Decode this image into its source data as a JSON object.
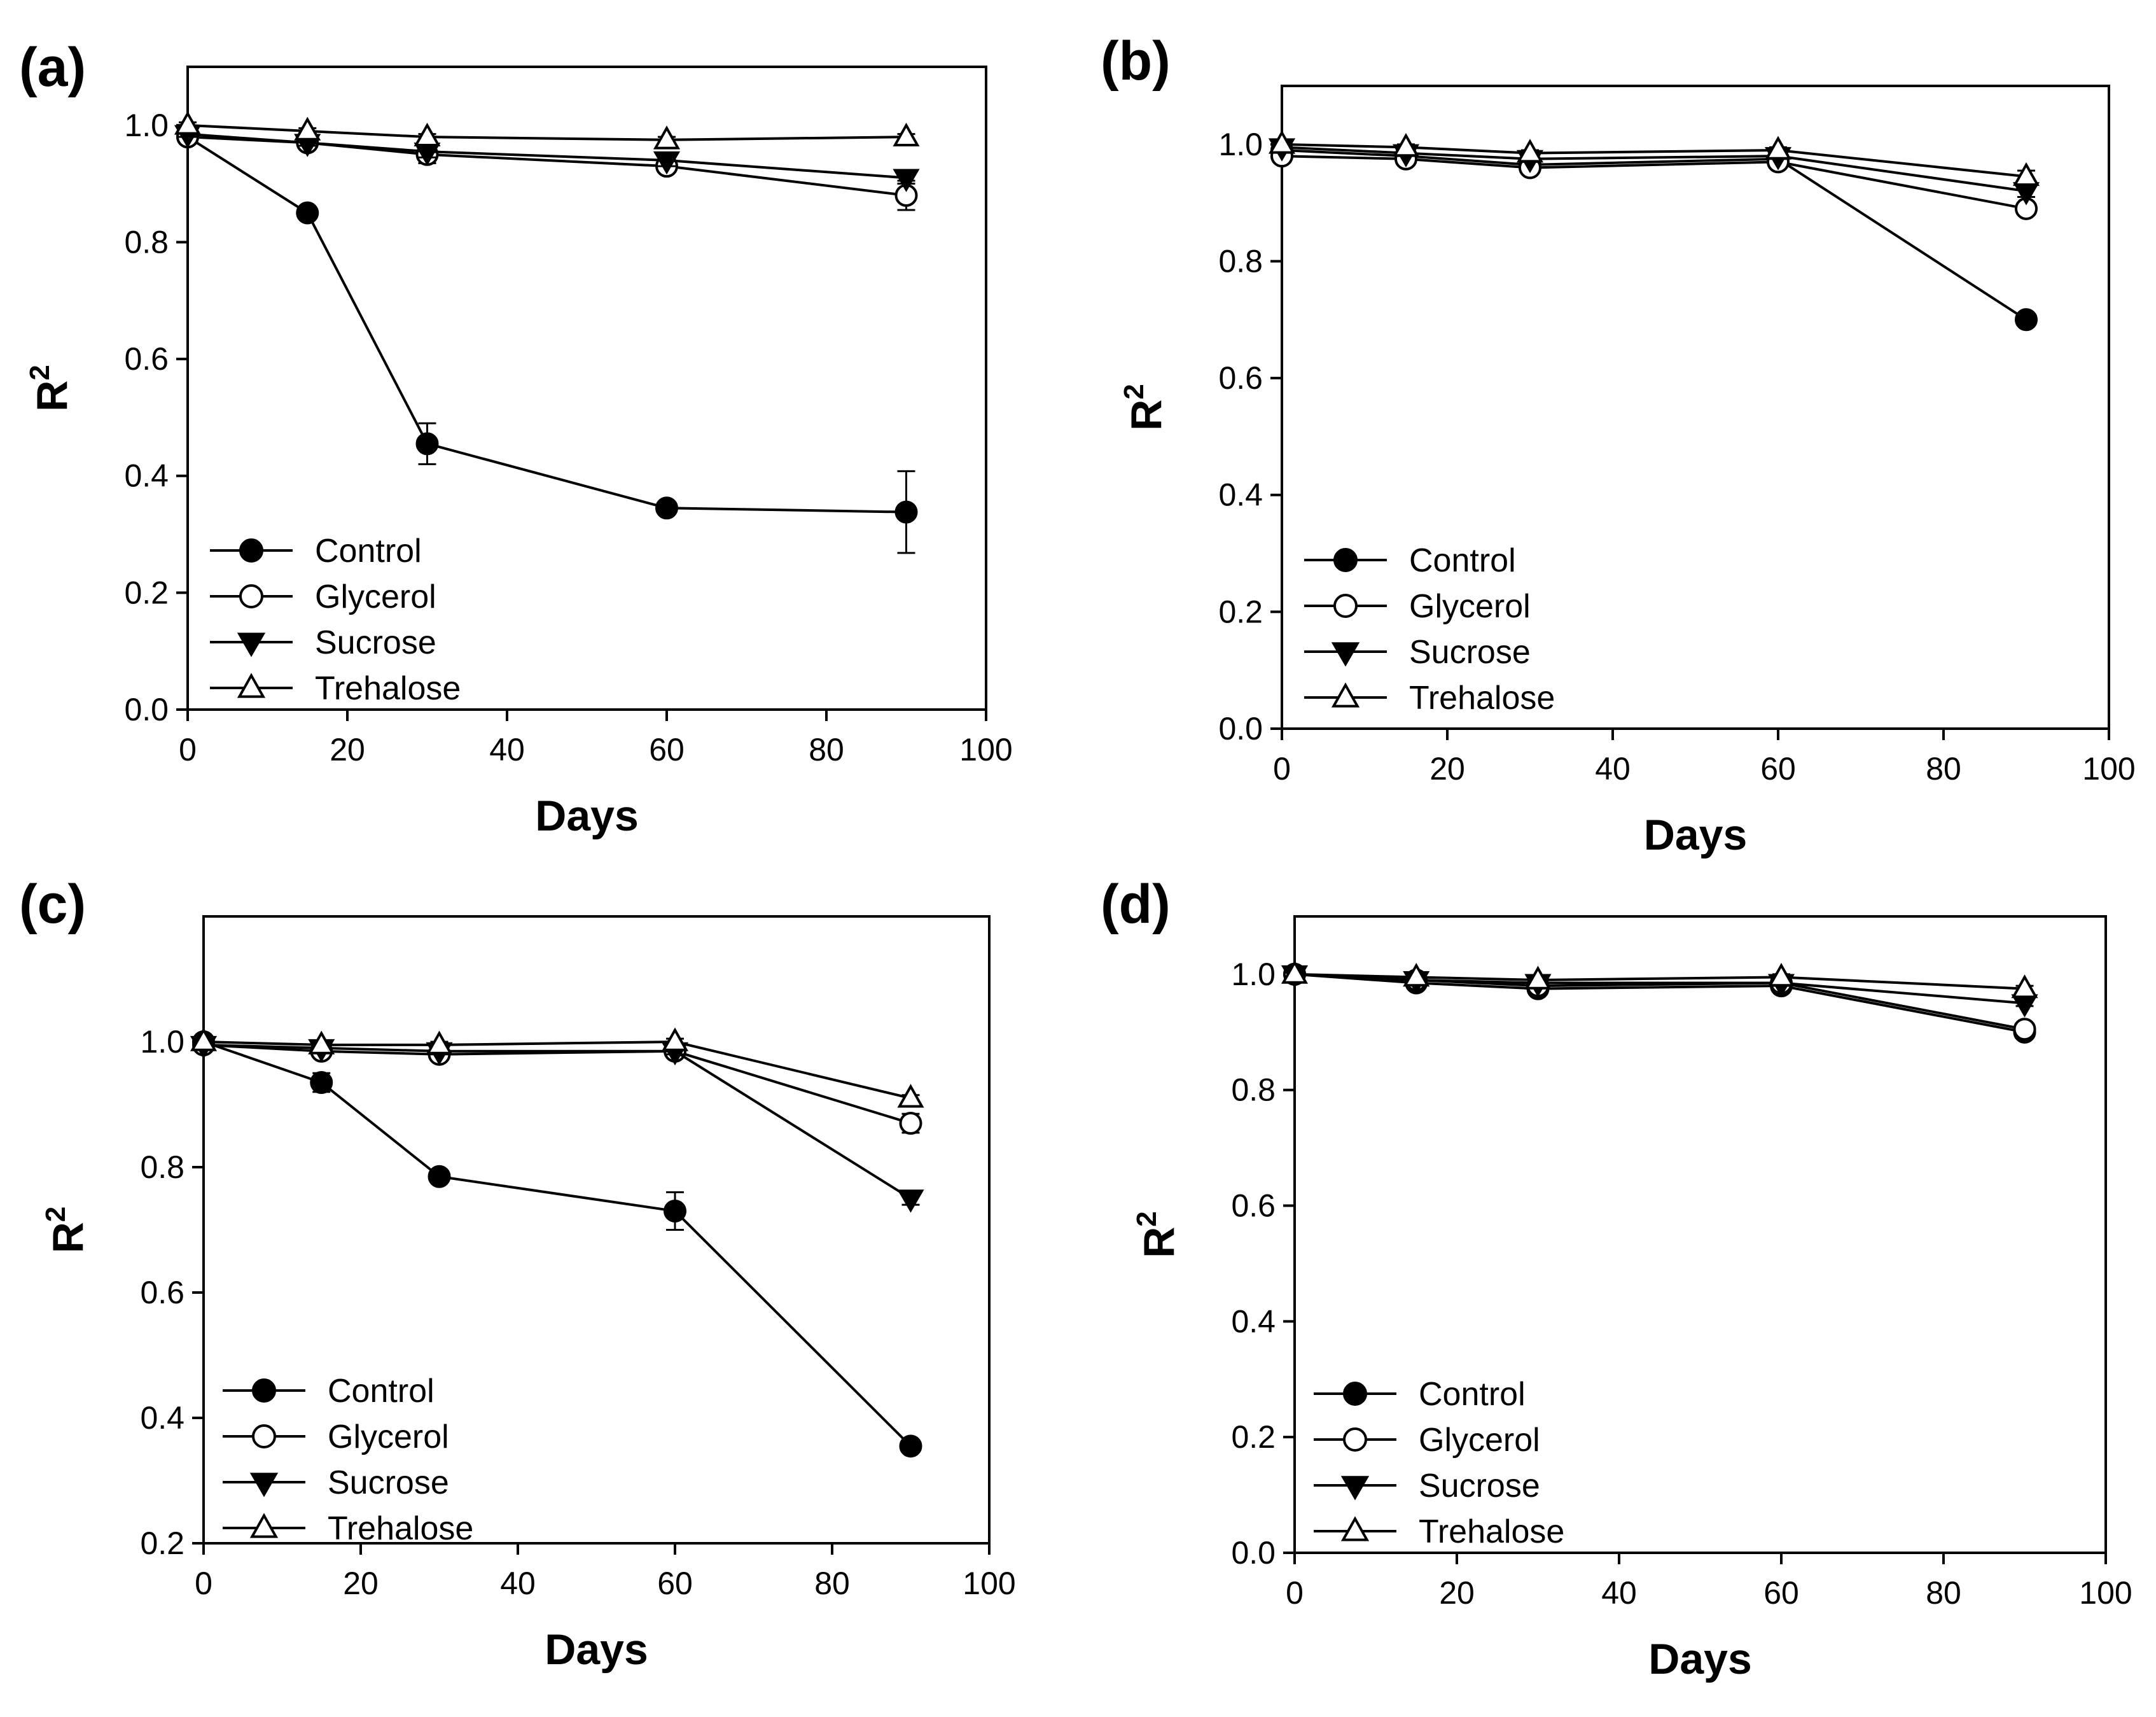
{
  "figure": {
    "panels": [
      "(a)",
      "(b)",
      "(c)",
      "(d)"
    ]
  },
  "chart_data": [
    {
      "panel": "(a)",
      "type": "line",
      "xlabel": "Days",
      "ylabel": "R",
      "ylabel_sup": "2",
      "xlim": [
        0,
        100
      ],
      "ylim": [
        0.0,
        1.1
      ],
      "xticks": [
        "0",
        "20",
        "40",
        "60",
        "80",
        "100"
      ],
      "yticks": [
        "0.0",
        "0.2",
        "0.4",
        "0.6",
        "0.8",
        "1.0"
      ],
      "x": [
        0,
        15,
        30,
        60,
        90
      ],
      "legend_position": "bottom-left",
      "series": [
        {
          "name": "Control",
          "marker": "filled-circle",
          "values": [
            0.98,
            0.85,
            0.455,
            0.345,
            0.338
          ],
          "errors": [
            0.01,
            0.01,
            0.035,
            0.01,
            0.07
          ]
        },
        {
          "name": "Glycerol",
          "marker": "open-circle",
          "values": [
            0.98,
            0.97,
            0.95,
            0.93,
            0.88
          ],
          "errors": [
            0.01,
            0.01,
            0.015,
            0.01,
            0.025
          ]
        },
        {
          "name": "Sucrose",
          "marker": "filled-triangle-down",
          "values": [
            0.985,
            0.97,
            0.955,
            0.94,
            0.91
          ],
          "errors": [
            0.005,
            0.005,
            0.01,
            0.01,
            0.01
          ]
        },
        {
          "name": "Trehalose",
          "marker": "open-triangle-up",
          "values": [
            1.0,
            0.99,
            0.98,
            0.975,
            0.98
          ],
          "errors": [
            0.005,
            0.005,
            0.005,
            0.005,
            0.005
          ]
        }
      ]
    },
    {
      "panel": "(b)",
      "type": "line",
      "xlabel": "Days",
      "ylabel": "R",
      "ylabel_sup": "2",
      "xlim": [
        0,
        100
      ],
      "ylim": [
        0.0,
        1.1
      ],
      "xticks": [
        "0",
        "20",
        "40",
        "60",
        "80",
        "100"
      ],
      "yticks": [
        "0.0",
        "0.2",
        "0.4",
        "0.6",
        "0.8",
        "1.0"
      ],
      "x": [
        0,
        15,
        30,
        60,
        90
      ],
      "legend_position": "bottom-left",
      "series": [
        {
          "name": "Control",
          "marker": "filled-circle",
          "values": [
            0.99,
            0.98,
            0.965,
            0.975,
            0.7
          ],
          "errors": [
            0.005,
            0.005,
            0.005,
            0.005,
            0.01
          ]
        },
        {
          "name": "Glycerol",
          "marker": "open-circle",
          "values": [
            0.98,
            0.975,
            0.96,
            0.97,
            0.89
          ],
          "errors": [
            0.005,
            0.01,
            0.005,
            0.005,
            0.01
          ]
        },
        {
          "name": "Sucrose",
          "marker": "filled-triangle-down",
          "values": [
            0.995,
            0.985,
            0.975,
            0.98,
            0.92
          ],
          "errors": [
            0.005,
            0.005,
            0.005,
            0.005,
            0.01
          ]
        },
        {
          "name": "Trehalose",
          "marker": "open-triangle-up",
          "values": [
            1.0,
            0.995,
            0.985,
            0.99,
            0.945
          ],
          "errors": [
            0.005,
            0.005,
            0.005,
            0.005,
            0.01
          ]
        }
      ]
    },
    {
      "panel": "(c)",
      "type": "line",
      "xlabel": "Days",
      "ylabel": "R",
      "ylabel_sup": "2",
      "xlim": [
        0,
        100
      ],
      "ylim": [
        0.2,
        1.2
      ],
      "xticks": [
        "0",
        "20",
        "40",
        "60",
        "80",
        "100"
      ],
      "yticks": [
        "0.2",
        "0.4",
        "0.6",
        "0.8",
        "1.0"
      ],
      "x": [
        0,
        15,
        30,
        60,
        90
      ],
      "legend_position": "bottom-left",
      "series": [
        {
          "name": "Control",
          "marker": "filled-circle",
          "values": [
            1.0,
            0.935,
            0.785,
            0.73,
            0.355
          ],
          "errors": [
            0.005,
            0.015,
            0.005,
            0.03,
            0.005
          ]
        },
        {
          "name": "Glycerol",
          "marker": "open-circle",
          "values": [
            0.995,
            0.985,
            0.98,
            0.985,
            0.87
          ],
          "errors": [
            0.005,
            0.005,
            0.005,
            0.005,
            0.015
          ]
        },
        {
          "name": "Sucrose",
          "marker": "filled-triangle-down",
          "values": [
            0.995,
            0.99,
            0.985,
            0.985,
            0.75
          ],
          "errors": [
            0.005,
            0.005,
            0.005,
            0.005,
            0.01
          ]
        },
        {
          "name": "Trehalose",
          "marker": "open-triangle-up",
          "values": [
            1.0,
            0.995,
            0.995,
            1.0,
            0.91
          ],
          "errors": [
            0.005,
            0.005,
            0.005,
            0.005,
            0.005
          ]
        }
      ]
    },
    {
      "panel": "(d)",
      "type": "line",
      "xlabel": "Days",
      "ylabel": "R",
      "ylabel_sup": "2",
      "xlim": [
        0,
        100
      ],
      "ylim": [
        0.0,
        1.1
      ],
      "xticks": [
        "0",
        "20",
        "40",
        "60",
        "80",
        "100"
      ],
      "yticks": [
        "0.0",
        "0.2",
        "0.4",
        "0.6",
        "0.8",
        "1.0"
      ],
      "x": [
        0,
        15,
        30,
        60,
        90
      ],
      "legend_position": "bottom-left",
      "series": [
        {
          "name": "Control",
          "marker": "filled-circle",
          "values": [
            1.0,
            0.985,
            0.975,
            0.98,
            0.9
          ],
          "errors": [
            0.005,
            0.005,
            0.005,
            0.005,
            0.01
          ]
        },
        {
          "name": "Glycerol",
          "marker": "open-circle",
          "values": [
            1.0,
            0.99,
            0.98,
            0.985,
            0.905
          ],
          "errors": [
            0.005,
            0.005,
            0.005,
            0.005,
            0.01
          ]
        },
        {
          "name": "Sucrose",
          "marker": "filled-triangle-down",
          "values": [
            1.0,
            0.99,
            0.985,
            0.985,
            0.95
          ],
          "errors": [
            0.005,
            0.005,
            0.005,
            0.005,
            0.005
          ]
        },
        {
          "name": "Trehalose",
          "marker": "open-triangle-up",
          "values": [
            1.0,
            0.995,
            0.99,
            0.995,
            0.975
          ],
          "errors": [
            0.005,
            0.005,
            0.005,
            0.005,
            0.005
          ]
        }
      ]
    }
  ]
}
